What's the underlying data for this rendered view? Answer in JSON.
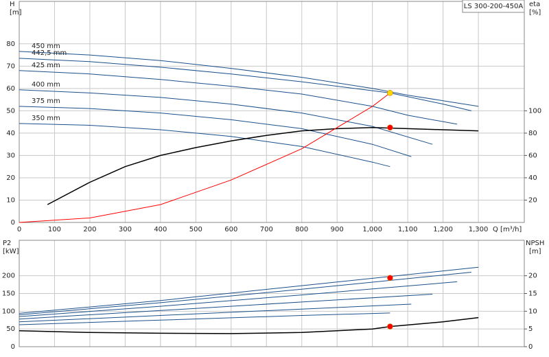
{
  "chart_data": [
    {
      "type": "line",
      "title": "LS 300-200-450A",
      "ylabel": "H",
      "yunit": "[m]",
      "y2label": "eta",
      "y2unit": "[%]",
      "xlabel": "Q [m³/h]",
      "xlim": [
        0,
        1430
      ],
      "ylim": [
        0,
        99
      ],
      "y2lim": [
        0,
        198
      ],
      "xticks": [
        0,
        100,
        200,
        300,
        400,
        500,
        600,
        700,
        800,
        900,
        {
          "value": 1000,
          "label": "1,000"
        },
        {
          "value": 1100,
          "label": "1,100"
        },
        {
          "value": 1200,
          "label": "1,200"
        },
        {
          "value": 1300,
          "label": "1,300"
        }
      ],
      "yticks": [
        0,
        10,
        20,
        30,
        40,
        50,
        60,
        70,
        80
      ],
      "y2ticks": [
        20,
        40,
        60,
        80,
        100
      ],
      "grid": true,
      "show_xtick_labels": true,
      "series": [
        {
          "name": "450 mm",
          "color": "#1a4f8a",
          "x": [
            0,
            200,
            400,
            600,
            800,
            1000,
            1100,
            1200,
            1300
          ],
          "values": [
            76.6,
            75,
            72.5,
            69,
            65,
            60,
            57,
            54.5,
            52
          ]
        },
        {
          "name": "442,5 mm",
          "color": "#1a4f8a",
          "x": [
            0,
            200,
            400,
            600,
            800,
            1000,
            1050,
            1200,
            1280
          ],
          "values": [
            73.5,
            72,
            69.5,
            66.5,
            63,
            59,
            58,
            53,
            50
          ]
        },
        {
          "name": "425 mm",
          "color": "#1a4f8a",
          "x": [
            0,
            200,
            400,
            600,
            800,
            1000,
            1100,
            1240
          ],
          "values": [
            68,
            66.5,
            64,
            61,
            57.5,
            52,
            48,
            44
          ]
        },
        {
          "name": "400 mm",
          "color": "#1a4f8a",
          "x": [
            0,
            200,
            400,
            600,
            800,
            1000,
            1170
          ],
          "values": [
            59.4,
            58,
            56,
            53,
            49,
            43,
            35
          ]
        },
        {
          "name": "375 mm",
          "color": "#1a4f8a",
          "x": [
            0,
            200,
            400,
            600,
            800,
            1000,
            1110
          ],
          "values": [
            52,
            51,
            49,
            46,
            42,
            35,
            29.5
          ]
        },
        {
          "name": "350 mm",
          "color": "#1a4f8a",
          "x": [
            0,
            200,
            400,
            600,
            800,
            1000,
            1050
          ],
          "values": [
            44.3,
            43.5,
            41.5,
            38.5,
            34,
            27,
            25
          ]
        },
        {
          "color": "#000000",
          "axis": "y2",
          "x": [
            80,
            200,
            300,
            400,
            500,
            600,
            700,
            800,
            900,
            1000,
            1100,
            1200,
            1300
          ],
          "values": [
            16,
            36,
            50,
            60,
            67,
            73,
            78,
            82,
            84,
            85,
            84,
            83,
            82
          ]
        },
        {
          "color": "#ff0000",
          "x": [
            0,
            200,
            400,
            600,
            800,
            1000,
            1050
          ],
          "values": [
            0,
            2,
            8,
            19,
            33,
            52,
            58
          ]
        }
      ],
      "markers": [
        {
          "x": 1050,
          "y": 58,
          "color": "#ffd700"
        },
        {
          "x": 1050,
          "y": 85,
          "axis": "y2",
          "color": "#ff0000"
        }
      ]
    },
    {
      "type": "line",
      "ylabel": "P2",
      "yunit": "[kW]",
      "y2label": "NPSH",
      "y2unit": "[m]",
      "xlim": [
        0,
        1430
      ],
      "ylim": [
        0,
        300
      ],
      "y2lim": [
        0,
        30
      ],
      "xticks": [
        0,
        100,
        200,
        300,
        400,
        500,
        600,
        700,
        800,
        900,
        1000,
        1100,
        1200,
        1300
      ],
      "yticks": [
        0,
        50,
        100,
        150,
        200
      ],
      "y2ticks": [
        0,
        5,
        10,
        15,
        20
      ],
      "grid": true,
      "show_xtick_labels": false,
      "series": [
        {
          "color": "#1a4f8a",
          "x": [
            0,
            400,
            800,
            1300
          ],
          "values": [
            94,
            130,
            172,
            224
          ]
        },
        {
          "color": "#1a4f8a",
          "x": [
            0,
            400,
            800,
            1280
          ],
          "values": [
            90,
            124,
            162,
            210
          ]
        },
        {
          "color": "#1a4f8a",
          "x": [
            0,
            400,
            800,
            1240
          ],
          "values": [
            85,
            114,
            146,
            183
          ]
        },
        {
          "color": "#1a4f8a",
          "x": [
            0,
            400,
            800,
            1170
          ],
          "values": [
            78,
            102,
            126,
            148
          ]
        },
        {
          "color": "#1a4f8a",
          "x": [
            0,
            400,
            800,
            1110
          ],
          "values": [
            70,
            88,
            106,
            120
          ]
        },
        {
          "color": "#1a4f8a",
          "x": [
            0,
            400,
            800,
            1050
          ],
          "values": [
            62,
            75,
            88,
            95
          ]
        },
        {
          "color": "#000000",
          "axis": "y2",
          "x": [
            0,
            200,
            400,
            600,
            800,
            1000,
            1050,
            1200,
            1300
          ],
          "values": [
            4.5,
            4,
            3.8,
            3.7,
            4,
            5,
            5.7,
            7,
            8.2
          ]
        }
      ],
      "markers": [
        {
          "x": 1050,
          "y": 194,
          "color": "#ff0000"
        },
        {
          "x": 1050,
          "y": 5.7,
          "axis": "y2",
          "color": "#ff0000"
        }
      ]
    }
  ]
}
